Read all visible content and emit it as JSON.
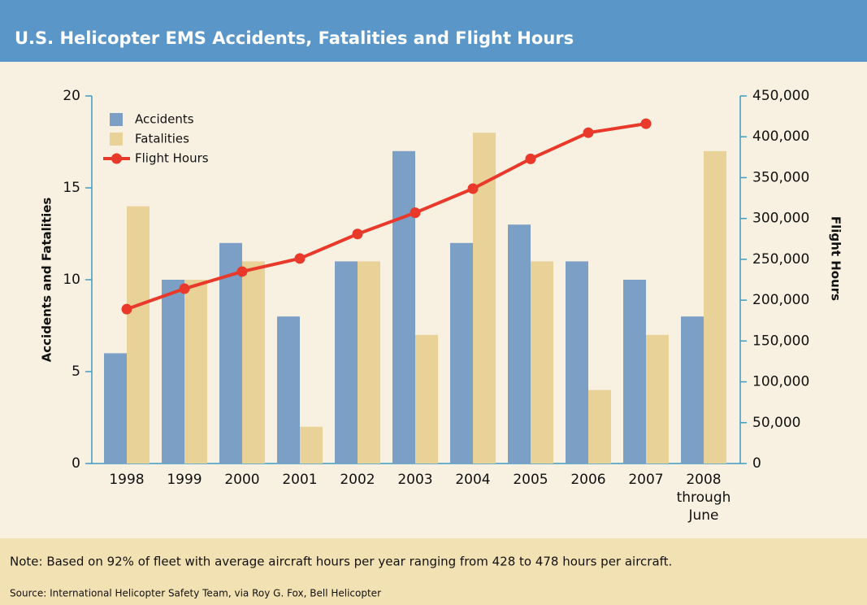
{
  "chart_data": {
    "type": "bar_line",
    "title": "U.S. Helicopter EMS Accidents, Fatalities and Flight Hours",
    "ylabel": "Accidents and Fatalities",
    "y2label": "Flight Hours",
    "categories": [
      "1998",
      "1999",
      "2000",
      "2001",
      "2002",
      "2003",
      "2004",
      "2005",
      "2006",
      "2007",
      "2008 through June"
    ],
    "series": [
      {
        "name": "Accidents",
        "color": "#7b9fc5",
        "values": [
          6,
          10,
          12,
          8,
          11,
          17,
          12,
          13,
          11,
          10,
          8
        ]
      },
      {
        "name": "Fatalities",
        "color": "#e9d298",
        "values": [
          14,
          10,
          11,
          2,
          11,
          7,
          18,
          11,
          4,
          7,
          17
        ]
      },
      {
        "name": "Flight Hours",
        "color": "#e8392b",
        "axis": "y2",
        "values": [
          189000,
          214000,
          235000,
          251000,
          281000,
          307000,
          336500,
          373000,
          405000,
          416000,
          null
        ]
      }
    ],
    "ylim": [
      0,
      20
    ],
    "yticks": [
      0,
      5,
      10,
      15,
      20
    ],
    "y2lim": [
      0,
      450000
    ],
    "y2ticks": [
      0,
      {
        "value": 50000,
        "label": "50,000"
      },
      {
        "value": 100000,
        "label": "100,000"
      },
      {
        "value": 150000,
        "label": "150,000"
      },
      {
        "value": 200000,
        "label": "200,000"
      },
      {
        "value": 250000,
        "label": "250,000"
      },
      {
        "value": 300000,
        "label": "300,000"
      },
      {
        "value": 350000,
        "label": "350,000"
      },
      {
        "value": 400000,
        "label": "400,000"
      },
      {
        "value": 450000,
        "label": "450,000"
      }
    ],
    "note": "Note: Based on 92% of fleet with average aircraft hours per year ranging from 428 to 478 hours per aircraft.",
    "source": "Source: International Helicopter Safety Team, via Roy G. Fox, Bell Helicopter"
  }
}
